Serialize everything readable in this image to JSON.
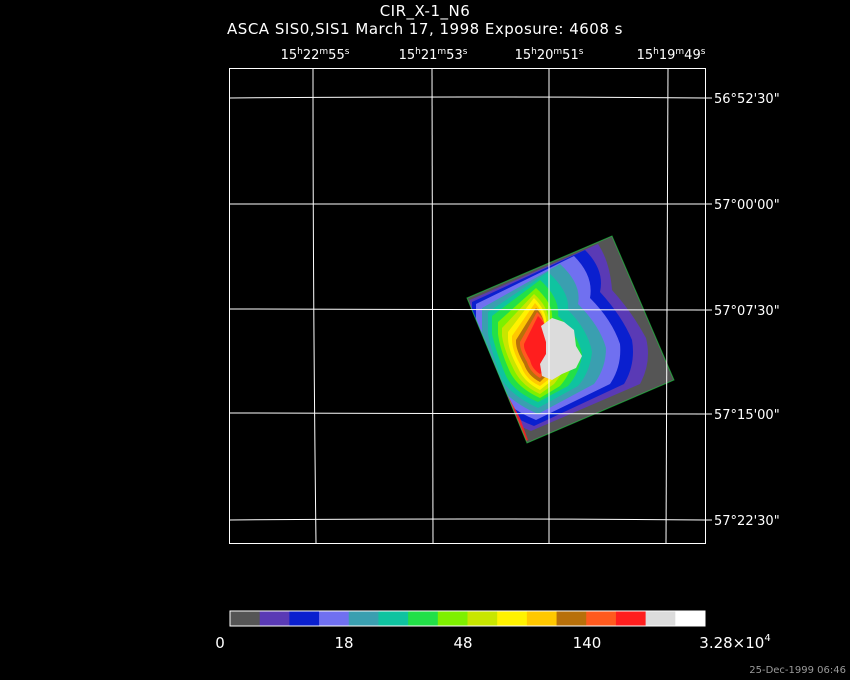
{
  "header": {
    "title": "CIR_X-1_N6",
    "subtitle": "ASCA SIS0,SIS1 March 17, 1998 Exposure: 4608 s"
  },
  "axes": {
    "ra_ticks": [
      {
        "h": "15",
        "m": "22",
        "s": "55"
      },
      {
        "h": "15",
        "m": "21",
        "s": "53"
      },
      {
        "h": "15",
        "m": "20",
        "s": "51"
      },
      {
        "h": "15",
        "m": "19",
        "s": "49"
      }
    ],
    "dec_ticks": [
      "56°52'30\"",
      "57°00'00\"",
      "57°07'30\"",
      "57°15'00\"",
      "57°22'30\""
    ],
    "grid": true
  },
  "colorbar": {
    "colors": [
      "#555555",
      "#5a3ab5",
      "#0a1fcf",
      "#7070f0",
      "#3a9fb0",
      "#0fc3a0",
      "#22e048",
      "#7ef000",
      "#c8e600",
      "#fff200",
      "#ffc800",
      "#b8700a",
      "#ff5a1e",
      "#ff1e1e",
      "#dcdcdc",
      "#ffffff"
    ],
    "labels": [
      {
        "text": "0"
      },
      {
        "text": "18"
      },
      {
        "text": "48"
      },
      {
        "text": "140"
      },
      {
        "text": "3.28×10",
        "sup": "4"
      }
    ]
  },
  "footer": {
    "timestamp": "25-Dec-1999 06:46"
  }
}
